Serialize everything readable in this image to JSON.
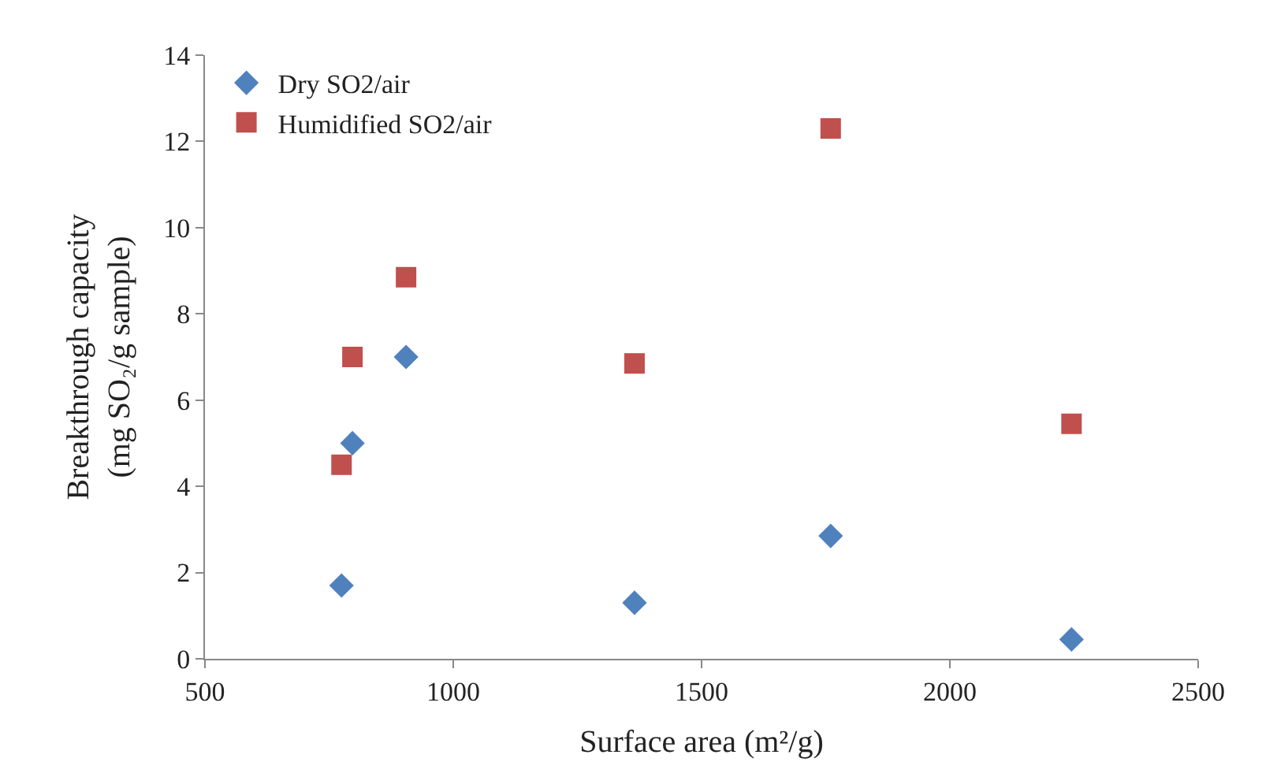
{
  "chart_data": {
    "type": "scatter",
    "xlabel": "Surface area (m²/g)",
    "ylabel": "Breakthrough capacity\n(mg SO₂/g sample)",
    "x": [
      775,
      797,
      905,
      1365,
      1760,
      2245
    ],
    "series": [
      {
        "name": "Dry SO2/air",
        "color": "#4f81bd",
        "marker": "diamond",
        "values": [
          1.7,
          5.0,
          7.0,
          1.3,
          2.85,
          0.45
        ]
      },
      {
        "name": "Humidified SO2/air",
        "color": "#c0504d",
        "marker": "square",
        "values": [
          4.5,
          7.0,
          8.85,
          6.85,
          12.3,
          5.45
        ]
      }
    ],
    "xlim": [
      500,
      2500
    ],
    "xticks": [
      500,
      1000,
      1500,
      2000,
      2500
    ],
    "ylim": [
      0,
      14
    ],
    "yticks": [
      0,
      2,
      4,
      6,
      8,
      10,
      12,
      14
    ],
    "legend": "top left"
  }
}
